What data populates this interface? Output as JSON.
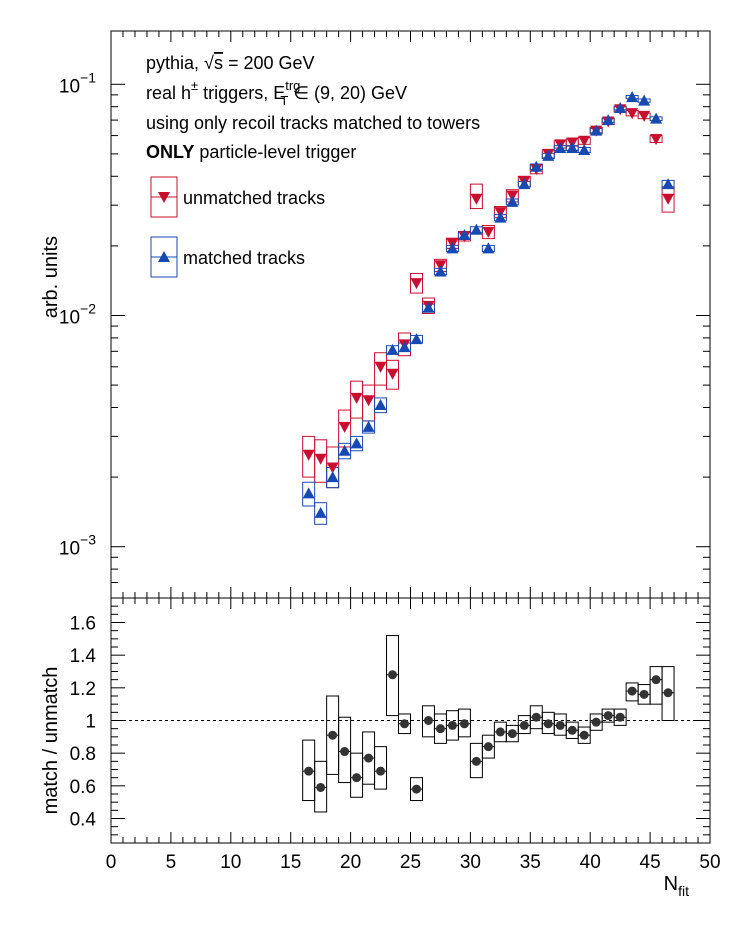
{
  "chart_data": [
    {
      "type": "scatter",
      "panel": "top",
      "y_scale": "log",
      "ylabel": "arb. units",
      "xlim": [
        0,
        50
      ],
      "ylim": [
        0.0006,
        0.17
      ],
      "y_ticks": [
        {
          "value": 0.001,
          "base": "10",
          "exp": "−3"
        },
        {
          "value": 0.01,
          "base": "10",
          "exp": "−2"
        },
        {
          "value": 0.1,
          "base": "10",
          "exp": "−1"
        }
      ],
      "annotations": [
        {
          "segments": [
            {
              "t": "pythia, "
            },
            {
              "t": "√",
              "sym": true
            },
            {
              "t": "s",
              "over": true
            },
            {
              "t": " = 200 GeV"
            }
          ]
        },
        {
          "segments": [
            {
              "t": "real h"
            },
            {
              "t": "±",
              "sup": true
            },
            {
              "t": " triggers, E"
            },
            {
              "t": "trg",
              "sup": true
            },
            {
              "t": "T",
              "sub": true
            },
            {
              "t": " ∈ (9, 20) GeV"
            }
          ]
        },
        {
          "segments": [
            {
              "t": "using only recoil tracks matched to towers"
            }
          ]
        },
        {
          "segments": [
            {
              "t": "ONLY",
              "bold": true
            },
            {
              "t": " particle-level trigger"
            }
          ]
        }
      ],
      "legend": {
        "position": "top-left",
        "entries": [
          {
            "label": "unmatched tracks",
            "series": 0
          },
          {
            "label": "matched tracks",
            "series": 1
          }
        ]
      },
      "series": [
        {
          "name": "unmatched tracks",
          "marker": "triangle-down",
          "color": "#c8102e",
          "x": [
            16.5,
            17.5,
            18.5,
            19.5,
            20.5,
            21.5,
            22.5,
            23.5,
            24.5,
            25.5,
            26.5,
            27.5,
            28.5,
            29.5,
            30.5,
            31.5,
            32.5,
            33.5,
            34.5,
            35.5,
            36.5,
            37.5,
            38.5,
            39.5,
            40.5,
            41.5,
            42.5,
            43.5,
            44.5,
            45.5,
            46.5
          ],
          "y": [
            0.0025,
            0.0024,
            0.0022,
            0.0033,
            0.0044,
            0.0043,
            0.006,
            0.0056,
            0.0075,
            0.0138,
            0.011,
            0.0165,
            0.0205,
            0.022,
            0.032,
            0.023,
            0.028,
            0.033,
            0.038,
            0.043,
            0.05,
            0.055,
            0.056,
            0.057,
            0.063,
            0.069,
            0.078,
            0.075,
            0.073,
            0.058,
            0.032
          ],
          "box_lo": [
            0.002,
            0.0019,
            0.0018,
            0.0027,
            0.0036,
            0.0035,
            0.005,
            0.0048,
            0.0067,
            0.0125,
            0.0102,
            0.0155,
            0.0195,
            0.021,
            0.029,
            0.0215,
            0.0265,
            0.031,
            0.036,
            0.041,
            0.048,
            0.053,
            0.054,
            0.055,
            0.061,
            0.067,
            0.076,
            0.073,
            0.071,
            0.056,
            0.028
          ],
          "box_hi": [
            0.003,
            0.0029,
            0.0027,
            0.0039,
            0.0052,
            0.005,
            0.0069,
            0.0064,
            0.0084,
            0.0152,
            0.0119,
            0.0175,
            0.0216,
            0.0231,
            0.037,
            0.0245,
            0.0296,
            0.035,
            0.04,
            0.045,
            0.052,
            0.057,
            0.058,
            0.059,
            0.065,
            0.071,
            0.08,
            0.077,
            0.075,
            0.06,
            0.036
          ]
        },
        {
          "name": "matched tracks",
          "marker": "triangle-up",
          "color": "#1749b3",
          "x": [
            16.5,
            17.5,
            18.5,
            19.5,
            20.5,
            21.5,
            22.5,
            23.5,
            24.5,
            25.5,
            26.5,
            27.5,
            28.5,
            29.5,
            30.5,
            31.5,
            32.5,
            33.5,
            34.5,
            35.5,
            36.5,
            37.5,
            38.5,
            39.5,
            40.5,
            41.5,
            42.5,
            43.5,
            44.5,
            45.5,
            46.5
          ],
          "y": [
            0.0017,
            0.0014,
            0.002,
            0.0026,
            0.0028,
            0.0033,
            0.0041,
            0.0071,
            0.0073,
            0.0079,
            0.0108,
            0.0155,
            0.0195,
            0.0223,
            0.0235,
            0.0195,
            0.0265,
            0.031,
            0.037,
            0.044,
            0.049,
            0.053,
            0.053,
            0.052,
            0.063,
            0.07,
            0.079,
            0.088,
            0.085,
            0.071,
            0.037
          ],
          "box_lo": [
            0.0015,
            0.00125,
            0.0018,
            0.0024,
            0.0026,
            0.0031,
            0.0038,
            0.0068,
            0.007,
            0.0076,
            0.0104,
            0.015,
            0.0189,
            0.0216,
            0.0228,
            0.0189,
            0.0257,
            0.0301,
            0.036,
            0.0428,
            0.0477,
            0.0517,
            0.0517,
            0.0507,
            0.0616,
            0.0685,
            0.0775,
            0.0866,
            0.0836,
            0.0697,
            0.0356
          ],
          "box_hi": [
            0.0019,
            0.00155,
            0.0022,
            0.0028,
            0.003,
            0.0035,
            0.0044,
            0.0074,
            0.0076,
            0.0082,
            0.0112,
            0.016,
            0.0201,
            0.023,
            0.0242,
            0.0201,
            0.0273,
            0.0319,
            0.038,
            0.0452,
            0.0503,
            0.0543,
            0.0543,
            0.0533,
            0.0644,
            0.0715,
            0.0805,
            0.0894,
            0.0864,
            0.0723,
            0.0384
          ]
        }
      ]
    },
    {
      "type": "scatter",
      "panel": "bottom",
      "xlabel": {
        "base": "N",
        "sub": "fit"
      },
      "ylabel": "match / unmatch",
      "xlim": [
        0,
        50
      ],
      "ylim": [
        0.25,
        1.75
      ],
      "x_ticks": [
        0,
        5,
        10,
        15,
        20,
        25,
        30,
        35,
        40,
        45,
        50
      ],
      "y_ticks": [
        0.4,
        0.6,
        0.8,
        1,
        1.2,
        1.4,
        1.6
      ],
      "y_tick_labels": [
        "0.4",
        "0.6",
        "0.8",
        "1",
        "1.2",
        "1.4",
        "1.6"
      ],
      "reference_line": 1.0,
      "series": [
        {
          "name": "",
          "marker": "circle",
          "color": "#333333",
          "x": [
            16.5,
            17.5,
            18.5,
            19.5,
            20.5,
            21.5,
            22.5,
            23.5,
            24.5,
            25.5,
            26.5,
            27.5,
            28.5,
            29.5,
            30.5,
            31.5,
            32.5,
            33.5,
            34.5,
            35.5,
            36.5,
            37.5,
            38.5,
            39.5,
            40.5,
            41.5,
            42.5,
            43.5,
            44.5,
            45.5,
            46.5
          ],
          "y": [
            0.69,
            0.59,
            0.91,
            0.81,
            0.65,
            0.77,
            0.69,
            1.28,
            0.98,
            0.58,
            1.0,
            0.95,
            0.97,
            0.98,
            0.75,
            0.84,
            0.93,
            0.92,
            0.97,
            1.02,
            0.98,
            0.97,
            0.94,
            0.91,
            0.99,
            1.03,
            1.02,
            1.18,
            1.16,
            1.25,
            1.17
          ],
          "box_lo": [
            0.51,
            0.44,
            0.67,
            0.62,
            0.53,
            0.61,
            0.58,
            1.03,
            0.92,
            0.51,
            0.9,
            0.86,
            0.88,
            0.9,
            0.65,
            0.77,
            0.87,
            0.87,
            0.92,
            0.95,
            0.92,
            0.91,
            0.89,
            0.86,
            0.94,
            0.99,
            0.97,
            1.12,
            1.1,
            1.1,
            1.0
          ],
          "box_hi": [
            0.88,
            0.75,
            1.15,
            1.02,
            0.8,
            0.93,
            0.84,
            1.52,
            1.04,
            0.65,
            1.09,
            1.04,
            1.06,
            1.07,
            0.86,
            0.91,
            0.99,
            0.97,
            1.03,
            1.09,
            1.05,
            1.04,
            0.99,
            0.96,
            1.04,
            1.07,
            1.07,
            1.23,
            1.22,
            1.33,
            1.33
          ]
        }
      ]
    }
  ]
}
